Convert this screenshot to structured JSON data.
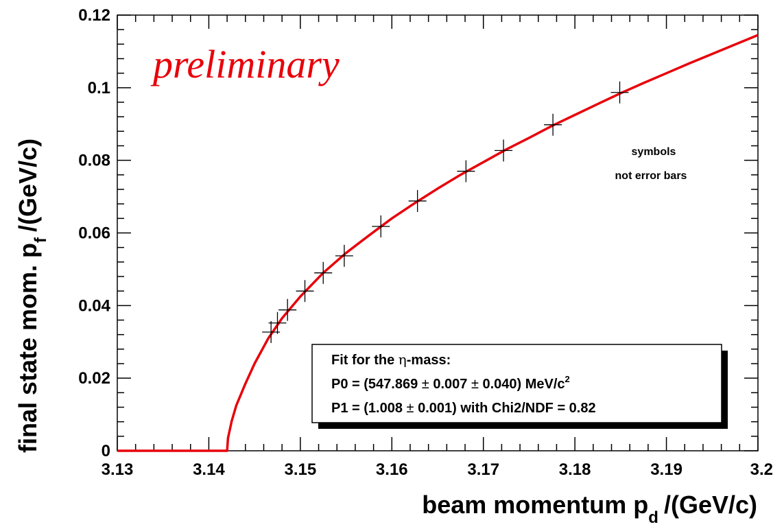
{
  "chart_data": {
    "type": "scatter",
    "title": "",
    "xlabel": "beam momentum p",
    "xlabel_sub": "d",
    "xlabel_unit": "/(GeV/c)",
    "ylabel": "final state mom. p",
    "ylabel_sub": "f",
    "ylabel_unit": "/(GeV/c)",
    "xlim": [
      3.13,
      3.2
    ],
    "ylim": [
      0,
      0.12
    ],
    "x_ticks": [
      "3.13",
      "3.14",
      "3.15",
      "3.16",
      "3.17",
      "3.18",
      "3.19",
      "3.2"
    ],
    "y_ticks": [
      "0",
      "0.02",
      "0.04",
      "0.06",
      "0.08",
      "0.1",
      "0.12"
    ],
    "grid": false,
    "series": [
      {
        "points": [
          {
            "x": 3.1468,
            "y": 0.0327
          },
          {
            "x": 3.1475,
            "y": 0.0352
          },
          {
            "x": 3.1486,
            "y": 0.0388
          },
          {
            "x": 3.1505,
            "y": 0.044
          },
          {
            "x": 3.1525,
            "y": 0.049
          },
          {
            "x": 3.1548,
            "y": 0.0537
          },
          {
            "x": 3.1588,
            "y": 0.0618
          },
          {
            "x": 3.1628,
            "y": 0.0688
          },
          {
            "x": 3.1681,
            "y": 0.077
          },
          {
            "x": 3.1722,
            "y": 0.0827
          },
          {
            "x": 3.1776,
            "y": 0.0898
          },
          {
            "x": 3.1849,
            "y": 0.0987
          }
        ]
      }
    ],
    "fit_curve": {
      "color": "#e8000a",
      "samples": [
        {
          "x": 3.13,
          "y": 0
        },
        {
          "x": 3.142,
          "y": 0
        },
        {
          "x": 3.1421,
          "y": 0.0035
        },
        {
          "x": 3.1425,
          "y": 0.0082
        },
        {
          "x": 3.143,
          "y": 0.0125
        },
        {
          "x": 3.144,
          "y": 0.0185
        },
        {
          "x": 3.145,
          "y": 0.024
        },
        {
          "x": 3.1465,
          "y": 0.031
        },
        {
          "x": 3.148,
          "y": 0.0365
        },
        {
          "x": 3.15,
          "y": 0.0425
        },
        {
          "x": 3.1525,
          "y": 0.049
        },
        {
          "x": 3.155,
          "y": 0.0545
        },
        {
          "x": 3.1575,
          "y": 0.0593
        },
        {
          "x": 3.16,
          "y": 0.064
        },
        {
          "x": 3.1625,
          "y": 0.0682
        },
        {
          "x": 3.165,
          "y": 0.0722
        },
        {
          "x": 3.1675,
          "y": 0.076
        },
        {
          "x": 3.17,
          "y": 0.0795
        },
        {
          "x": 3.1725,
          "y": 0.083
        },
        {
          "x": 3.175,
          "y": 0.0862
        },
        {
          "x": 3.1775,
          "y": 0.0895
        },
        {
          "x": 3.18,
          "y": 0.0925
        },
        {
          "x": 3.1825,
          "y": 0.0955
        },
        {
          "x": 3.185,
          "y": 0.0985
        },
        {
          "x": 3.1875,
          "y": 0.1013
        },
        {
          "x": 3.19,
          "y": 0.104
        },
        {
          "x": 3.1925,
          "y": 0.1067
        },
        {
          "x": 3.195,
          "y": 0.1093
        },
        {
          "x": 3.1975,
          "y": 0.1119
        },
        {
          "x": 3.2,
          "y": 0.1145
        }
      ]
    },
    "annotations": {
      "watermark": "preliminary",
      "note_line1": "symbols",
      "note_line2": "not error bars"
    },
    "legend": {
      "placement": "bottom-right",
      "line1_a": "Fit for the ",
      "line1_eta": "η",
      "line1_b": "-mass:",
      "line2_a": "P0 = (547.869 ",
      "line2_pm1": "±",
      "line2_b": " 0.007 ",
      "line2_pm2": "±",
      "line2_c": " 0.040) MeV/c",
      "line2_sup": "2",
      "line3_a": "P1 = (1.008 ",
      "line3_pm": "±",
      "line3_b": " 0.001) with Chi2/NDF = 0.82"
    }
  },
  "colors": {
    "fit_line": "#e8000a",
    "watermark": "#e8000a",
    "markers": "#000000",
    "axes": "#000000"
  }
}
